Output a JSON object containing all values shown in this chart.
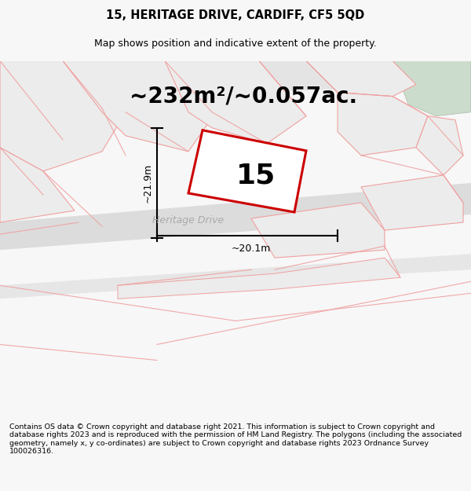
{
  "title_line1": "15, HERITAGE DRIVE, CARDIFF, CF5 5QD",
  "title_line2": "Map shows position and indicative extent of the property.",
  "area_label": "~232m²/~0.057ac.",
  "property_number": "15",
  "dim_vertical": "~21.9m",
  "dim_horizontal": "~20.1m",
  "road_label": "Heritage Drive",
  "footer_text": "Contains OS data © Crown copyright and database right 2021. This information is subject to Crown copyright and database rights 2023 and is reproduced with the permission of HM Land Registry. The polygons (including the associated geometry, namely x, y co-ordinates) are subject to Crown copyright and database rights 2023 Ordnance Survey 100026316.",
  "bg_color": "#f7f7f7",
  "map_bg": "#ffffff",
  "road_fill": "#dcdcdc",
  "property_fill": "#ffffff",
  "property_outline": "#cc0000",
  "other_outline": "#f0a0a0",
  "parcel_fill": "#ececec",
  "green_fill": "#ccdccc",
  "title_fontsize": 10.5,
  "subtitle_fontsize": 9,
  "area_fontsize": 20,
  "number_fontsize": 26,
  "dim_fontsize": 9,
  "road_label_fontsize": 9,
  "footer_fontsize": 6.8
}
